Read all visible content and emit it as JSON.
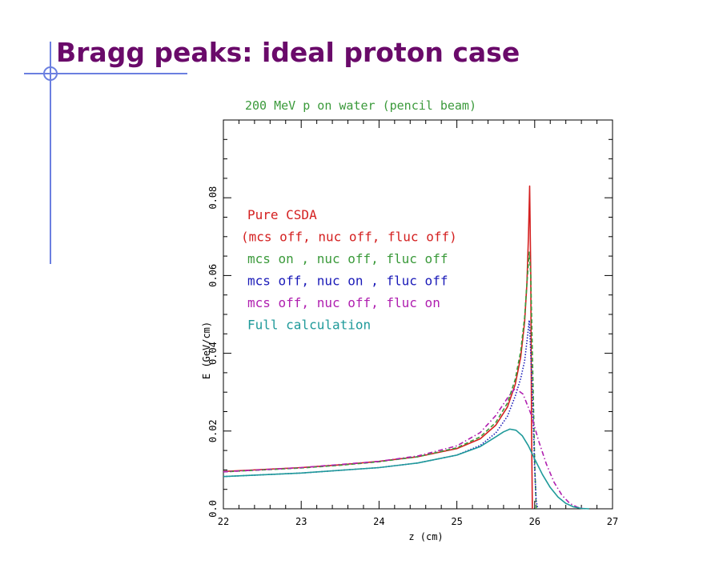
{
  "slide": {
    "title": "Bragg peaks: ideal proton case"
  },
  "chart_data": {
    "type": "line",
    "title": "200 MeV p on water (pencil beam)",
    "xlabel": "z (cm)",
    "ylabel": "E (GeV/cm)",
    "xlim": [
      22,
      27
    ],
    "ylim": [
      0,
      0.1
    ],
    "x_ticks": [
      "22",
      "23",
      "24",
      "25",
      "26",
      "27"
    ],
    "y_ticks": [
      "0.0",
      "0.02",
      "0.04",
      "0.06",
      "0.08"
    ],
    "legend_position": "top-left",
    "title_color": "#3b9a3b",
    "series": [
      {
        "name": "Pure CSDA",
        "color": "#d42020",
        "dash": "solid",
        "x": [
          22.0,
          23.0,
          23.5,
          24.0,
          24.5,
          25.0,
          25.3,
          25.5,
          25.65,
          25.75,
          25.82,
          25.87,
          25.9,
          25.92,
          25.935,
          25.95,
          25.96,
          25.97
        ],
        "y": [
          0.0096,
          0.0106,
          0.0113,
          0.0122,
          0.0134,
          0.0155,
          0.018,
          0.0215,
          0.0262,
          0.032,
          0.039,
          0.048,
          0.058,
          0.07,
          0.083,
          0.06,
          0.02,
          0.0
        ]
      },
      {
        "name": "(mcs off, nuc off, fluc off)",
        "color": "#d42020",
        "dash": "legend-only",
        "x": [],
        "y": []
      },
      {
        "name": "mcs on , nuc off, fluc off",
        "color": "#3b9a3b",
        "dash": "dashed",
        "x": [
          22.0,
          23.0,
          23.5,
          24.0,
          24.5,
          25.0,
          25.3,
          25.5,
          25.65,
          25.75,
          25.82,
          25.87,
          25.9,
          25.93,
          25.95,
          25.97,
          26.0,
          26.02
        ],
        "y": [
          0.0095,
          0.0105,
          0.0112,
          0.0121,
          0.0134,
          0.0157,
          0.0185,
          0.0222,
          0.0272,
          0.0333,
          0.0405,
          0.0492,
          0.058,
          0.066,
          0.06,
          0.04,
          0.012,
          0.0
        ]
      },
      {
        "name": "mcs off, nuc on , fluc off",
        "color": "#1a1ab8",
        "dash": "dotted",
        "x": [
          22.0,
          23.0,
          24.0,
          24.5,
          25.0,
          25.3,
          25.5,
          25.65,
          25.75,
          25.82,
          25.87,
          25.9,
          25.93,
          25.95,
          25.97,
          26.0,
          26.02,
          26.04
        ],
        "y": [
          0.0083,
          0.0092,
          0.0106,
          0.0118,
          0.0138,
          0.0163,
          0.0195,
          0.0238,
          0.029,
          0.0335,
          0.038,
          0.043,
          0.0485,
          0.04,
          0.03,
          0.01,
          0.002,
          0.0
        ]
      },
      {
        "name": "mcs off, nuc off, fluc on",
        "color": "#b020b0",
        "dash": "dashdot",
        "x": [
          22.0,
          23.0,
          24.0,
          24.5,
          25.0,
          25.3,
          25.5,
          25.65,
          25.75,
          25.85,
          25.95,
          26.05,
          26.15,
          26.25,
          26.35,
          26.45,
          26.55,
          26.65
        ],
        "y": [
          0.0095,
          0.0106,
          0.0122,
          0.0136,
          0.0162,
          0.0196,
          0.024,
          0.0285,
          0.031,
          0.0295,
          0.0245,
          0.0175,
          0.0115,
          0.0068,
          0.0035,
          0.0014,
          0.0004,
          0.0
        ]
      },
      {
        "name": "Full calculation",
        "color": "#1f9a9a",
        "dash": "solid",
        "x": [
          22.0,
          23.0,
          24.0,
          24.5,
          25.0,
          25.3,
          25.5,
          25.6,
          25.68,
          25.76,
          25.84,
          25.92,
          26.0,
          26.1,
          26.2,
          26.3,
          26.4,
          26.5,
          26.6,
          26.7
        ],
        "y": [
          0.0083,
          0.0092,
          0.0106,
          0.0118,
          0.0138,
          0.016,
          0.0185,
          0.0198,
          0.0205,
          0.0202,
          0.0188,
          0.0162,
          0.0128,
          0.0088,
          0.0055,
          0.003,
          0.0014,
          0.0005,
          0.0001,
          0.0
        ]
      }
    ]
  }
}
